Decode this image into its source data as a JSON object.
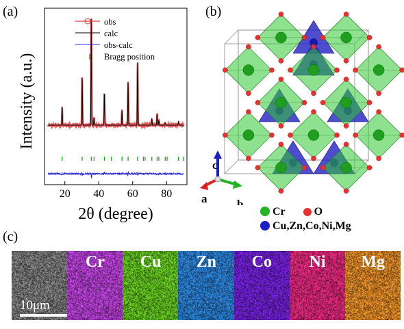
{
  "panels": {
    "a": "(a)",
    "b": "(b)",
    "c": "(c)"
  },
  "chart_data": {
    "type": "line",
    "xlabel": "2θ (degree)",
    "ylabel": "Intensity (a.u.)",
    "xticks": [
      20,
      40,
      60,
      80
    ],
    "xlim": [
      8,
      92
    ],
    "ylim": [
      0,
      100
    ],
    "colors": {
      "obs": "#e03a3a",
      "calc": "#000000",
      "diff": "#2a2ae0",
      "bragg": "#1aa51a"
    },
    "legend": [
      {
        "label": "obs",
        "kind": "obs"
      },
      {
        "label": "calc",
        "kind": "calc"
      },
      {
        "label": "obs-calc",
        "kind": "diff"
      },
      {
        "label": "Bragg position",
        "kind": "bragg"
      }
    ],
    "background": 17,
    "peaks": [
      {
        "x": 18.4,
        "y": 31
      },
      {
        "x": 30.2,
        "y": 54
      },
      {
        "x": 35.6,
        "y": 100
      },
      {
        "x": 37.2,
        "y": 23
      },
      {
        "x": 43.3,
        "y": 42
      },
      {
        "x": 53.7,
        "y": 28
      },
      {
        "x": 57.3,
        "y": 50
      },
      {
        "x": 62.9,
        "y": 65
      },
      {
        "x": 71.3,
        "y": 22
      },
      {
        "x": 74.4,
        "y": 26
      },
      {
        "x": 75.4,
        "y": 21
      },
      {
        "x": 79.2,
        "y": 19
      },
      {
        "x": 87.0,
        "y": 20
      }
    ],
    "bragg_positions": [
      18.4,
      30.2,
      35.6,
      37.2,
      43.3,
      47.4,
      53.7,
      57.3,
      62.9,
      66.3,
      67.3,
      71.3,
      74.4,
      75.4,
      79.2,
      80.3,
      87.0,
      89.9
    ]
  },
  "crystal": {
    "axes": {
      "a": "a",
      "b": "b",
      "c": "c"
    },
    "legend": {
      "cr": "Cr",
      "o": "O",
      "tet": "Cu,Zn,Co,Ni,Mg",
      "cr_color": "#22b422",
      "o_color": "#e83030",
      "tet_color": "#1c1cc8"
    }
  },
  "eds": {
    "scale": "10μm",
    "tiles": [
      {
        "label": "",
        "color": "#8c8c8c"
      },
      {
        "label": "Cr",
        "color": "#b640d6"
      },
      {
        "label": "Cu",
        "color": "#62c21e"
      },
      {
        "label": "Zn",
        "color": "#2a7ed0"
      },
      {
        "label": "Co",
        "color": "#7020d4"
      },
      {
        "label": "Ni",
        "color": "#e0287a"
      },
      {
        "label": "Mg",
        "color": "#e48a26"
      }
    ]
  }
}
